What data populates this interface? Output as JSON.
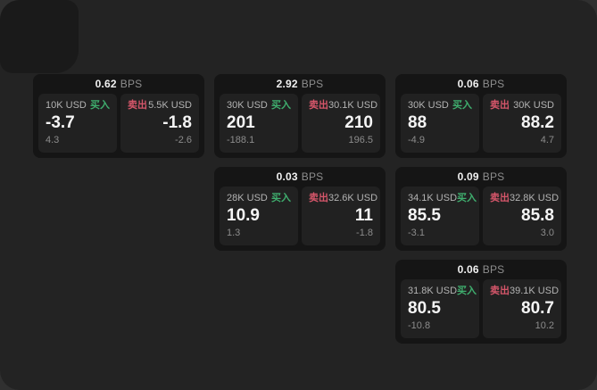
{
  "labels": {
    "bps_unit": "BPS",
    "buy": "买入",
    "sell": "卖出"
  },
  "colors": {
    "backdrop": "#303030",
    "window": "#232323",
    "corner_panel": "#1a1a1a",
    "card": "#151515",
    "panel": "#212121",
    "buy_green": "#3fae6e",
    "sell_red": "#d5566a",
    "text_primary": "#f5f5f5",
    "text_secondary": "#b3b3b3",
    "text_muted": "#8c8c8c"
  },
  "cards": [
    {
      "bps": "0.62",
      "col": 1,
      "row": 1,
      "buy": {
        "notional": "10K USD",
        "price": "-3.7",
        "sub": "4.3"
      },
      "sell": {
        "notional": "5.5K USD",
        "price": "-1.8",
        "sub": "-2.6"
      }
    },
    {
      "bps": "2.92",
      "col": 2,
      "row": 1,
      "buy": {
        "notional": "30K USD",
        "price": "201",
        "sub": "-188.1"
      },
      "sell": {
        "notional": "30.1K USD",
        "price": "210",
        "sub": "196.5"
      }
    },
    {
      "bps": "0.03",
      "col": 2,
      "row": 2,
      "buy": {
        "notional": "28K USD",
        "price": "10.9",
        "sub": "1.3"
      },
      "sell": {
        "notional": "32.6K USD",
        "price": "11",
        "sub": "-1.8"
      }
    },
    {
      "bps": "0.06",
      "col": 3,
      "row": 1,
      "buy": {
        "notional": "30K USD",
        "price": "88",
        "sub": "-4.9"
      },
      "sell": {
        "notional": "30K USD",
        "price": "88.2",
        "sub": "4.7"
      }
    },
    {
      "bps": "0.09",
      "col": 3,
      "row": 2,
      "buy": {
        "notional": "34.1K USD",
        "price": "85.5",
        "sub": "-3.1"
      },
      "sell": {
        "notional": "32.8K USD",
        "price": "85.8",
        "sub": "3.0"
      }
    },
    {
      "bps": "0.06",
      "col": 3,
      "row": 3,
      "buy": {
        "notional": "31.8K USD",
        "price": "80.5",
        "sub": "-10.8"
      },
      "sell": {
        "notional": "39.1K USD",
        "price": "80.7",
        "sub": "10.2"
      }
    }
  ]
}
